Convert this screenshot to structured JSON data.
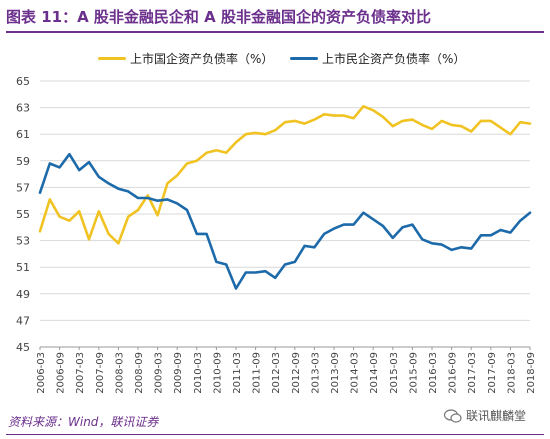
{
  "header": {
    "title": "图表 11：A 股非金融民企和 A 股非金融国企的资产负债率对比"
  },
  "footer": {
    "source": "资料来源：Wind，联讯证券",
    "watermark": "联讯麒麟堂"
  },
  "colors": {
    "soe": "#f0c322",
    "private": "#1d6aaa",
    "accent": "#6b2f8c",
    "grid": "#d9d9d9"
  },
  "chart_data": {
    "type": "line",
    "ylim": [
      45,
      65
    ],
    "yticks": [
      45,
      47,
      49,
      51,
      53,
      55,
      57,
      59,
      61,
      63,
      65
    ],
    "xticks": [
      "2006-03",
      "2006-09",
      "2007-03",
      "2007-09",
      "2008-03",
      "2008-09",
      "2009-03",
      "2009-09",
      "2010-03",
      "2010-09",
      "2011-03",
      "2011-09",
      "2012-03",
      "2012-09",
      "2013-03",
      "2013-09",
      "2014-03",
      "2014-09",
      "2015-03",
      "2015-09",
      "2016-03",
      "2016-09",
      "2017-03",
      "2017-09",
      "2018-03",
      "2018-09"
    ],
    "legend": [
      "上市国企资产负债率（%）",
      "上市民企资产负债率（%）"
    ],
    "series": [
      {
        "name": "上市国企资产负债率（%）",
        "values": [
          53.7,
          56.1,
          54.8,
          54.5,
          55.2,
          53.1,
          55.2,
          53.5,
          52.8,
          54.8,
          55.3,
          56.4,
          54.9,
          57.3,
          57.9,
          58.8,
          59.0,
          59.6,
          59.8,
          59.6,
          60.4,
          61.0,
          61.1,
          61.0,
          61.3,
          61.9,
          62.0,
          61.8,
          62.1,
          62.5,
          62.4,
          62.4,
          62.2,
          63.1,
          62.8,
          62.3,
          61.6,
          62.0,
          62.1,
          61.7,
          61.4,
          62.0,
          61.7,
          61.6,
          61.2,
          62.0,
          62.0,
          61.5,
          61.0,
          61.9,
          61.8
        ]
      },
      {
        "name": "上市民企资产负债率（%）",
        "values": [
          56.6,
          58.8,
          58.5,
          59.5,
          58.3,
          58.9,
          57.8,
          57.3,
          56.9,
          56.7,
          56.2,
          56.2,
          56.0,
          56.1,
          55.8,
          55.3,
          53.5,
          53.5,
          51.4,
          51.2,
          49.4,
          50.6,
          50.6,
          50.7,
          50.2,
          51.2,
          51.4,
          52.6,
          52.5,
          53.5,
          53.9,
          54.2,
          54.2,
          55.1,
          54.6,
          54.1,
          53.2,
          54.0,
          54.2,
          53.1,
          52.8,
          52.7,
          52.3,
          52.5,
          52.4,
          53.4,
          53.4,
          53.8,
          53.6,
          54.5,
          55.1
        ]
      }
    ]
  }
}
